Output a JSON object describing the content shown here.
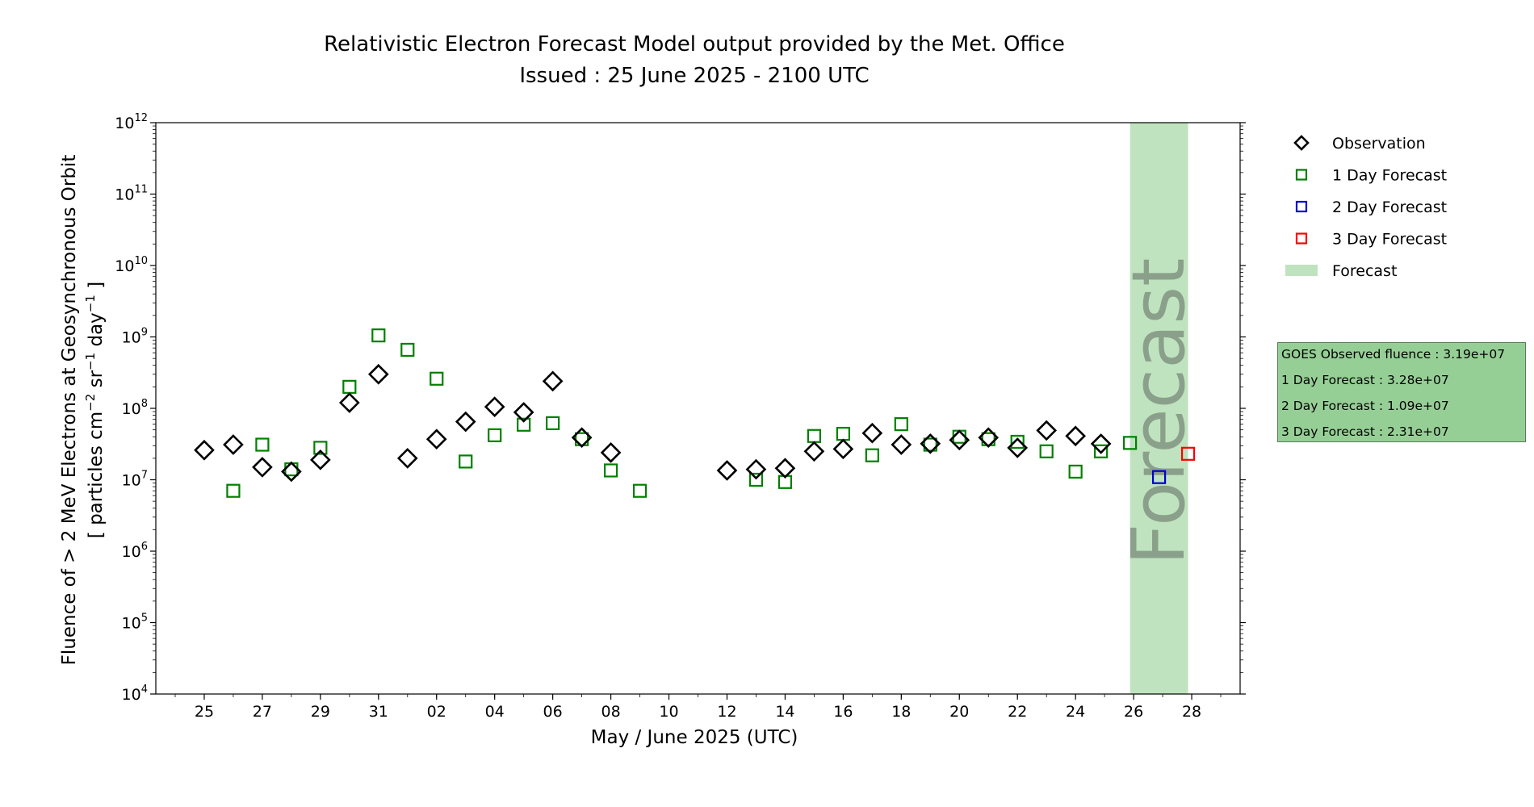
{
  "chart_data": {
    "type": "scatter",
    "title": "Relativistic Electron Forecast Model output provided by the Met. Office",
    "subtitle": "Issued : 25 June 2025 - 2100 UTC",
    "xlabel": "May / June 2025 (UTC)",
    "ylabel_line1": "Fluence of > 2 MeV Electrons at Geosynchronous Orbit",
    "ylabel_line2_parts": [
      "[ particles cm",
      "−2",
      " sr",
      "−1",
      " day",
      "−1",
      " ]"
    ],
    "y_scale": "log",
    "ylim": [
      10000.0,
      1000000000000.0
    ],
    "xlim": [
      "2025-05-23T08:00",
      "2025-06-29T16:00"
    ],
    "y_ticks": [
      {
        "value": 10000.0,
        "base": "10",
        "exp": "4"
      },
      {
        "value": 100000.0,
        "base": "10",
        "exp": "5"
      },
      {
        "value": 1000000.0,
        "base": "10",
        "exp": "6"
      },
      {
        "value": 10000000.0,
        "base": "10",
        "exp": "7"
      },
      {
        "value": 100000000.0,
        "base": "10",
        "exp": "8"
      },
      {
        "value": 1000000000.0,
        "base": "10",
        "exp": "9"
      },
      {
        "value": 10000000000.0,
        "base": "10",
        "exp": "10"
      },
      {
        "value": 100000000000.0,
        "base": "10",
        "exp": "11"
      },
      {
        "value": 1000000000000.0,
        "base": "10",
        "exp": "12"
      }
    ],
    "x_ticks": [
      {
        "date": "2025-05-25",
        "label": "25"
      },
      {
        "date": "2025-05-27",
        "label": "27"
      },
      {
        "date": "2025-05-29",
        "label": "29"
      },
      {
        "date": "2025-05-31",
        "label": "31"
      },
      {
        "date": "2025-06-02",
        "label": "02"
      },
      {
        "date": "2025-06-04",
        "label": "04"
      },
      {
        "date": "2025-06-06",
        "label": "06"
      },
      {
        "date": "2025-06-08",
        "label": "08"
      },
      {
        "date": "2025-06-10",
        "label": "10"
      },
      {
        "date": "2025-06-12",
        "label": "12"
      },
      {
        "date": "2025-06-14",
        "label": "14"
      },
      {
        "date": "2025-06-16",
        "label": "16"
      },
      {
        "date": "2025-06-18",
        "label": "18"
      },
      {
        "date": "2025-06-20",
        "label": "20"
      },
      {
        "date": "2025-06-22",
        "label": "22"
      },
      {
        "date": "2025-06-24",
        "label": "24"
      },
      {
        "date": "2025-06-26",
        "label": "26"
      },
      {
        "date": "2025-06-28",
        "label": "28"
      }
    ],
    "forecast_band": {
      "start": "2025-06-25T21:00",
      "end": "2025-06-27T21:00",
      "label": "Forecast",
      "color": "#bfe3bf",
      "text_color": "#8aa08a"
    },
    "series": [
      {
        "name": "Observation",
        "marker": "diamond",
        "color": "#000000",
        "points": [
          {
            "x": "2025-05-25",
            "y": 26000000.0
          },
          {
            "x": "2025-05-26",
            "y": 31000000.0
          },
          {
            "x": "2025-05-27",
            "y": 15000000.0
          },
          {
            "x": "2025-05-28",
            "y": 13000000.0
          },
          {
            "x": "2025-05-29",
            "y": 19000000.0
          },
          {
            "x": "2025-05-30",
            "y": 120000000.0
          },
          {
            "x": "2025-05-31",
            "y": 300000000.0
          },
          {
            "x": "2025-06-01",
            "y": 20000000.0
          },
          {
            "x": "2025-06-02",
            "y": 37000000.0
          },
          {
            "x": "2025-06-03",
            "y": 65000000.0
          },
          {
            "x": "2025-06-04",
            "y": 105000000.0
          },
          {
            "x": "2025-06-05",
            "y": 88000000.0
          },
          {
            "x": "2025-06-06",
            "y": 240000000.0
          },
          {
            "x": "2025-06-07",
            "y": 39000000.0
          },
          {
            "x": "2025-06-08",
            "y": 24000000.0
          },
          {
            "x": "2025-06-12",
            "y": 13500000.0
          },
          {
            "x": "2025-06-13",
            "y": 14000000.0
          },
          {
            "x": "2025-06-14",
            "y": 14500000.0
          },
          {
            "x": "2025-06-15",
            "y": 25000000.0
          },
          {
            "x": "2025-06-16",
            "y": 27000000.0
          },
          {
            "x": "2025-06-17",
            "y": 45000000.0
          },
          {
            "x": "2025-06-18",
            "y": 31000000.0
          },
          {
            "x": "2025-06-19",
            "y": 32000000.0
          },
          {
            "x": "2025-06-20",
            "y": 36000000.0
          },
          {
            "x": "2025-06-21",
            "y": 39000000.0
          },
          {
            "x": "2025-06-22",
            "y": 28000000.0
          },
          {
            "x": "2025-06-23",
            "y": 49000000.0
          },
          {
            "x": "2025-06-24",
            "y": 41000000.0
          },
          {
            "x": "2025-06-24T21:00",
            "y": 31900000.0
          }
        ]
      },
      {
        "name": "1 Day Forecast",
        "marker": "square",
        "color": "#008000",
        "points": [
          {
            "x": "2025-05-26",
            "y": 7000000.0
          },
          {
            "x": "2025-05-27",
            "y": 31000000.0
          },
          {
            "x": "2025-05-28",
            "y": 14000000.0
          },
          {
            "x": "2025-05-29",
            "y": 28000000.0
          },
          {
            "x": "2025-05-30",
            "y": 200000000.0
          },
          {
            "x": "2025-05-31",
            "y": 1050000000.0
          },
          {
            "x": "2025-06-01",
            "y": 660000000.0
          },
          {
            "x": "2025-06-02",
            "y": 260000000.0
          },
          {
            "x": "2025-06-03",
            "y": 18000000.0
          },
          {
            "x": "2025-06-04",
            "y": 42000000.0
          },
          {
            "x": "2025-06-05",
            "y": 59000000.0
          },
          {
            "x": "2025-06-06",
            "y": 62000000.0
          },
          {
            "x": "2025-06-07",
            "y": 37000000.0
          },
          {
            "x": "2025-06-08",
            "y": 13500000.0
          },
          {
            "x": "2025-06-09",
            "y": 7000000.0
          },
          {
            "x": "2025-06-13",
            "y": 10000000.0
          },
          {
            "x": "2025-06-14",
            "y": 9300000.0
          },
          {
            "x": "2025-06-15",
            "y": 41000000.0
          },
          {
            "x": "2025-06-16",
            "y": 44000000.0
          },
          {
            "x": "2025-06-17",
            "y": 22000000.0
          },
          {
            "x": "2025-06-18",
            "y": 60000000.0
          },
          {
            "x": "2025-06-19",
            "y": 31000000.0
          },
          {
            "x": "2025-06-20",
            "y": 40000000.0
          },
          {
            "x": "2025-06-21",
            "y": 37000000.0
          },
          {
            "x": "2025-06-22",
            "y": 34000000.0
          },
          {
            "x": "2025-06-23",
            "y": 25000000.0
          },
          {
            "x": "2025-06-24",
            "y": 13000000.0
          },
          {
            "x": "2025-06-24T21:00",
            "y": 25000000.0
          },
          {
            "x": "2025-06-25T21:00",
            "y": 32800000.0
          }
        ]
      },
      {
        "name": "2 Day Forecast",
        "marker": "square",
        "color": "#0000cc",
        "points": [
          {
            "x": "2025-06-26T21:00",
            "y": 10900000.0
          }
        ]
      },
      {
        "name": "3 Day Forecast",
        "marker": "square",
        "color": "#ff0000",
        "points": [
          {
            "x": "2025-06-27T21:00",
            "y": 23100000.0
          }
        ]
      }
    ],
    "legend": {
      "placement": "outside-right-top",
      "entries": [
        "Observation",
        "1 Day Forecast",
        "2 Day Forecast",
        "3 Day Forecast",
        "Forecast"
      ]
    },
    "grid": false
  },
  "info_box": {
    "lines": [
      "GOES Observed fluence : 3.19e+07",
      "1 Day Forecast : 3.28e+07",
      "2 Day Forecast : 1.09e+07",
      "3 Day Forecast : 2.31e+07"
    ],
    "background": "#96cf96"
  }
}
